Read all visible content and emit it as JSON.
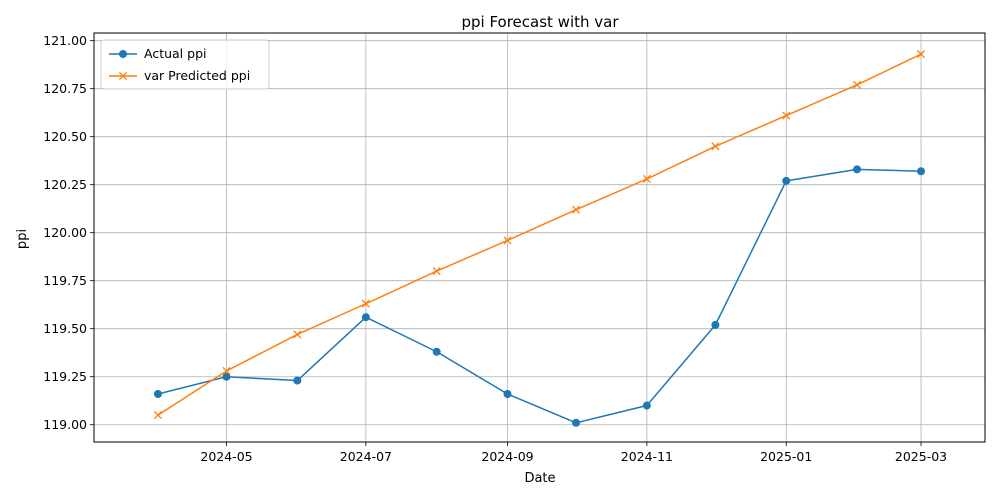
{
  "chart_data": {
    "type": "line",
    "title": "ppi Forecast with var",
    "xlabel": "Date",
    "ylabel": "ppi",
    "x": [
      "2024-04-01",
      "2024-05-01",
      "2024-06-01",
      "2024-07-01",
      "2024-08-01",
      "2024-09-01",
      "2024-10-01",
      "2024-11-01",
      "2024-12-01",
      "2025-01-01",
      "2025-02-01",
      "2025-03-01"
    ],
    "xlim": [
      "2024-03-04",
      "2025-03-29"
    ],
    "x_ticks": [
      "2024-05",
      "2024-07",
      "2024-09",
      "2024-11",
      "2025-01",
      "2025-03"
    ],
    "ylim": [
      118.91,
      121.04
    ],
    "y_ticks": [
      "119.00",
      "119.25",
      "119.50",
      "119.75",
      "120.00",
      "120.25",
      "120.50",
      "120.75",
      "121.00"
    ],
    "grid": true,
    "legend_position": "top-left",
    "series": [
      {
        "name": "Actual ppi",
        "color": "#1f77b4",
        "marker": "circle",
        "values": [
          119.16,
          119.25,
          119.23,
          119.56,
          119.38,
          119.16,
          119.01,
          119.1,
          119.52,
          120.27,
          120.33,
          120.32
        ]
      },
      {
        "name": "var Predicted ppi",
        "color": "#ff7f0e",
        "marker": "x",
        "values": [
          119.05,
          119.28,
          119.47,
          119.63,
          119.8,
          119.96,
          120.12,
          120.28,
          120.45,
          120.61,
          120.77,
          120.93
        ]
      }
    ]
  }
}
